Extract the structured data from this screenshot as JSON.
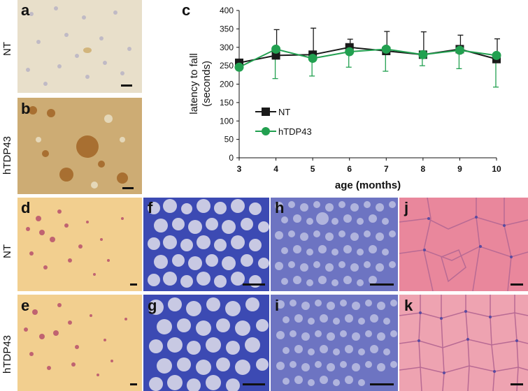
{
  "panel_labels": {
    "a": "a",
    "b": "b",
    "c": "c",
    "d": "d",
    "e": "e",
    "f": "f",
    "g": "g",
    "h": "h",
    "i": "i",
    "j": "j",
    "k": "k"
  },
  "row_labels": {
    "top_nt": "NT",
    "top_htdp": "hTDP43",
    "bottom_nt": "NT",
    "bottom_htdp": "hTDP43"
  },
  "colors": {
    "nt": "#1a1a1a",
    "htdp43": "#22a050"
  },
  "chart_data": {
    "type": "line",
    "title": "",
    "xlabel": "age (months)",
    "ylabel_line1": "latency to fall",
    "ylabel_line2": "(seconds)",
    "x": [
      3,
      4,
      5,
      6,
      7,
      8,
      9,
      10
    ],
    "xlim": [
      3,
      10
    ],
    "ylim": [
      0,
      400
    ],
    "yticks": [
      0,
      50,
      100,
      150,
      200,
      250,
      300,
      350,
      400
    ],
    "grid": false,
    "legend_position": "left-middle",
    "series": [
      {
        "name": "NT",
        "values": [
          258,
          278,
          280,
          300,
          290,
          280,
          295,
          268
        ],
        "err_up": [
          0,
          70,
          72,
          22,
          53,
          62,
          38,
          55
        ],
        "err_down": [
          0,
          0,
          0,
          0,
          0,
          0,
          0,
          0
        ]
      },
      {
        "name": "hTDP43",
        "values": [
          246,
          295,
          270,
          288,
          295,
          280,
          292,
          278
        ],
        "err_up": [
          0,
          0,
          0,
          0,
          0,
          0,
          0,
          0
        ],
        "err_down": [
          0,
          80,
          48,
          42,
          60,
          30,
          50,
          86
        ]
      }
    ]
  }
}
